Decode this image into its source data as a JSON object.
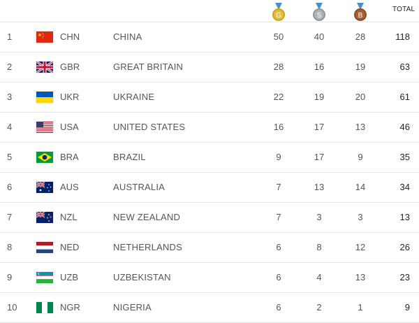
{
  "header": {
    "gold_letter": "G",
    "silver_letter": "S",
    "bronze_letter": "B",
    "total_label": "TOTAL",
    "colors": {
      "gold": "#d4a017",
      "silver": "#9ea3a8",
      "bronze": "#a0522d"
    }
  },
  "rows": [
    {
      "rank": "1",
      "flag": "china-flag",
      "code": "CHN",
      "country": "CHINA",
      "gold": "50",
      "silver": "40",
      "bronze": "28",
      "total": "118"
    },
    {
      "rank": "2",
      "flag": "great-britain-flag",
      "code": "GBR",
      "country": "GREAT BRITAIN",
      "gold": "28",
      "silver": "16",
      "bronze": "19",
      "total": "63"
    },
    {
      "rank": "3",
      "flag": "ukraine-flag",
      "code": "UKR",
      "country": "UKRAINE",
      "gold": "22",
      "silver": "19",
      "bronze": "20",
      "total": "61"
    },
    {
      "rank": "4",
      "flag": "usa-flag",
      "code": "USA",
      "country": "UNITED STATES",
      "gold": "16",
      "silver": "17",
      "bronze": "13",
      "total": "46"
    },
    {
      "rank": "5",
      "flag": "brazil-flag",
      "code": "BRA",
      "country": "BRAZIL",
      "gold": "9",
      "silver": "17",
      "bronze": "9",
      "total": "35"
    },
    {
      "rank": "6",
      "flag": "australia-flag",
      "code": "AUS",
      "country": "AUSTRALIA",
      "gold": "7",
      "silver": "13",
      "bronze": "14",
      "total": "34"
    },
    {
      "rank": "7",
      "flag": "new-zealand-flag",
      "code": "NZL",
      "country": "NEW ZEALAND",
      "gold": "7",
      "silver": "3",
      "bronze": "3",
      "total": "13"
    },
    {
      "rank": "8",
      "flag": "netherlands-flag",
      "code": "NED",
      "country": "NETHERLANDS",
      "gold": "6",
      "silver": "8",
      "bronze": "12",
      "total": "26"
    },
    {
      "rank": "9",
      "flag": "uzbekistan-flag",
      "code": "UZB",
      "country": "UZBEKISTAN",
      "gold": "6",
      "silver": "4",
      "bronze": "13",
      "total": "23"
    },
    {
      "rank": "10",
      "flag": "nigeria-flag",
      "code": "NGR",
      "country": "NIGERIA",
      "gold": "6",
      "silver": "2",
      "bronze": "1",
      "total": "9"
    }
  ]
}
